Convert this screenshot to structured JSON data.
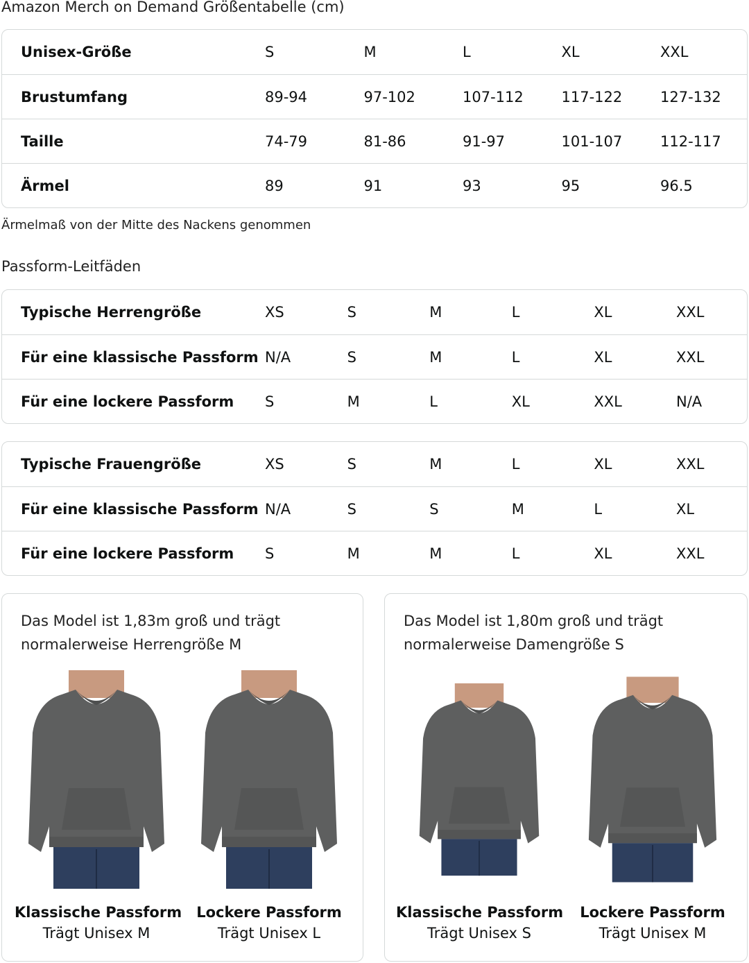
{
  "title": "Amazon Merch on Demand Größentabelle (cm)",
  "size_table": {
    "rows": [
      {
        "label": "Unisex-Größe",
        "values": [
          "S",
          "M",
          "L",
          "XL",
          "XXL"
        ]
      },
      {
        "label": "Brustumfang",
        "values": [
          "89-94",
          "97-102",
          "107-112",
          "117-122",
          "127-132"
        ]
      },
      {
        "label": "Taille",
        "values": [
          "74-79",
          "81-86",
          "91-97",
          "101-107",
          "112-117"
        ]
      },
      {
        "label": "Ärmel",
        "values": [
          "89",
          "91",
          "93",
          "95",
          "96.5"
        ]
      }
    ]
  },
  "note": "Ärmelmaß von der Mitte des Nackens genommen",
  "fit_heading": "Passform-Leitfäden",
  "men_table": {
    "rows": [
      {
        "label": "Typische Herrengröße",
        "values": [
          "XS",
          "S",
          "M",
          "L",
          "XL",
          "XXL"
        ]
      },
      {
        "label": "Für eine klassische Passform",
        "values": [
          "N/A",
          "S",
          "M",
          "L",
          "XL",
          "XXL"
        ]
      },
      {
        "label": "Für eine lockere Passform",
        "values": [
          "S",
          "M",
          "L",
          "XL",
          "XXL",
          "N/A"
        ]
      }
    ]
  },
  "women_table": {
    "rows": [
      {
        "label": "Typische Frauengröße",
        "values": [
          "XS",
          "S",
          "M",
          "L",
          "XL",
          "XXL"
        ]
      },
      {
        "label": "Für eine klassische Passform",
        "values": [
          "N/A",
          "S",
          "S",
          "M",
          "L",
          "XL"
        ]
      },
      {
        "label": "Für eine lockere Passform",
        "values": [
          "S",
          "M",
          "M",
          "L",
          "XL",
          "XXL"
        ]
      }
    ]
  },
  "cards": [
    {
      "desc1": "Das Model ist 1,83m groß und trägt",
      "desc2": "normalerweise Herrengröße M",
      "figs": [
        {
          "fit": "Klassische Passform",
          "wears": "Trägt Unisex M"
        },
        {
          "fit": "Lockere Passform",
          "wears": "Trägt Unisex L"
        }
      ]
    },
    {
      "desc1": "Das Model ist 1,80m groß und trägt",
      "desc2": "normalerweise Damengröße S",
      "figs": [
        {
          "fit": "Klassische Passform",
          "wears": "Trägt Unisex S"
        },
        {
          "fit": "Lockere Passform",
          "wears": "Trägt Unisex M"
        }
      ]
    }
  ],
  "colors": {
    "border": "#d5d9d9",
    "hoodie": "#5e5f5f",
    "jeans": "#2e3f5e",
    "skin": "#c89a80"
  }
}
